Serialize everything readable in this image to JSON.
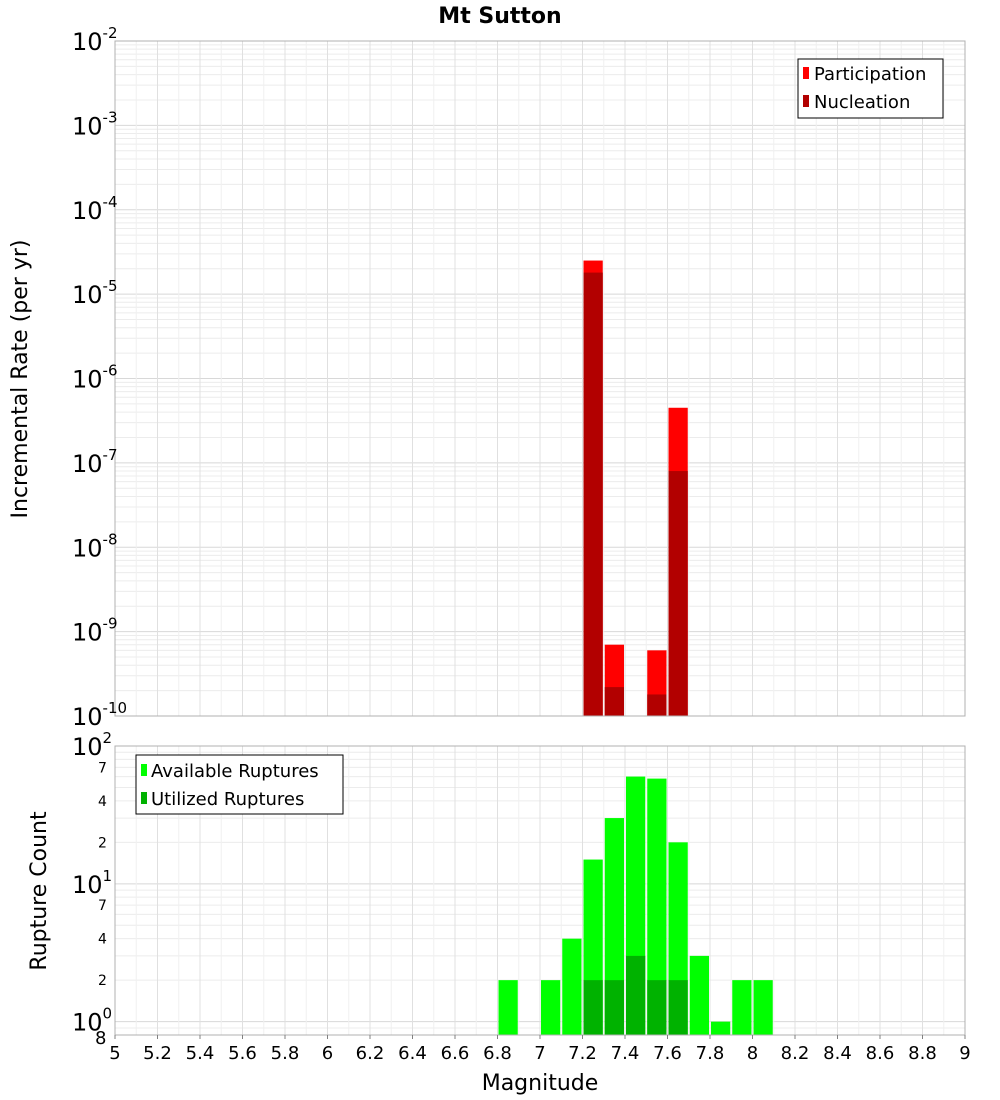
{
  "chart_data": [
    {
      "type": "bar",
      "title": "Mt Sutton",
      "xlabel": "",
      "ylabel": "Incremental Rate (per yr)",
      "yscale": "log",
      "xlim": [
        5,
        9
      ],
      "ylim": [
        1e-10,
        0.01
      ],
      "bin_width": 0.1,
      "y_ticks": [
        {
          "base": "10",
          "exp": "-2",
          "value": 0.01
        },
        {
          "base": "10",
          "exp": "-3",
          "value": 0.001
        },
        {
          "base": "10",
          "exp": "-4",
          "value": 0.0001
        },
        {
          "base": "10",
          "exp": "-5",
          "value": 1e-05
        },
        {
          "base": "10",
          "exp": "-6",
          "value": 1e-06
        },
        {
          "base": "10",
          "exp": "-7",
          "value": 1e-07
        },
        {
          "base": "10",
          "exp": "-8",
          "value": 1e-08
        },
        {
          "base": "10",
          "exp": "-9",
          "value": 1e-09
        },
        {
          "base": "10",
          "exp": "-10",
          "value": 1e-10
        }
      ],
      "legend_position": "top-right",
      "series": [
        {
          "name": "Participation",
          "color": "#ff0000",
          "x": [
            7.25,
            7.35,
            7.55,
            7.65
          ],
          "values": [
            2.5e-05,
            7e-10,
            6e-10,
            4.5e-07
          ]
        },
        {
          "name": "Nucleation",
          "color": "#b20000",
          "x": [
            7.25,
            7.35,
            7.55,
            7.65
          ],
          "values": [
            1.8e-05,
            2.2e-10,
            1.8e-10,
            8e-08
          ]
        }
      ],
      "grid": true
    },
    {
      "type": "bar",
      "title": "",
      "xlabel": "Magnitude",
      "ylabel": "Rupture Count",
      "yscale": "log",
      "xlim": [
        5,
        9
      ],
      "ylim": [
        0.8,
        100
      ],
      "bin_width": 0.1,
      "x_ticks": [
        "5",
        "5.2",
        "5.4",
        "5.6",
        "5.8",
        "6",
        "6.2",
        "6.4",
        "6.6",
        "6.8",
        "7",
        "7.2",
        "7.4",
        "7.6",
        "7.8",
        "8",
        "8.2",
        "8.4",
        "8.6",
        "8.8",
        "9"
      ],
      "y_major_ticks": [
        {
          "base": "10",
          "exp": "2",
          "value": 100
        },
        {
          "base": "10",
          "exp": "1",
          "value": 10
        },
        {
          "base": "10",
          "exp": "0",
          "value": 1
        }
      ],
      "y_minor_labels": [
        {
          "label": "7",
          "value": 70
        },
        {
          "label": "4",
          "value": 40
        },
        {
          "label": "2",
          "value": 20
        },
        {
          "label": "7",
          "value": 7
        },
        {
          "label": "4",
          "value": 4
        },
        {
          "label": "2",
          "value": 2
        },
        {
          "label": "8",
          "value": 0.8
        }
      ],
      "legend_position": "top-left",
      "series": [
        {
          "name": "Available Ruptures",
          "color": "#00ff00",
          "x": [
            6.85,
            7.05,
            7.15,
            7.25,
            7.35,
            7.45,
            7.55,
            7.65,
            7.75,
            7.85,
            7.95,
            8.05
          ],
          "values": [
            2,
            2,
            4,
            15,
            30,
            60,
            58,
            20,
            3,
            1,
            2,
            2
          ]
        },
        {
          "name": "Utilized Ruptures",
          "color": "#00b200",
          "x": [
            7.25,
            7.35,
            7.45,
            7.55,
            7.65
          ],
          "values": [
            2,
            2,
            3,
            2,
            2
          ]
        }
      ],
      "grid": true
    }
  ]
}
